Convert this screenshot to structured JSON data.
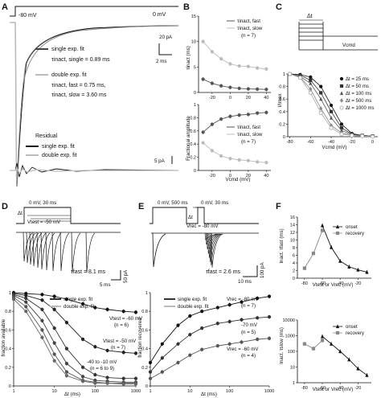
{
  "panels": {
    "a": {
      "letter": "A",
      "hold_voltage": "-80 mV",
      "step_voltage": "0 mV",
      "scale_pa": "20 pA",
      "scale_ms": "2 ms",
      "fit_single": "single exp. fit",
      "tau_single": "τinact, single = 0.89 ms",
      "fit_double": "double exp. fit",
      "tau_fast": "τinact, fast = 0.75 ms,",
      "tau_slow": "τinact, slow = 3.60 ms",
      "residual_title": "Residual",
      "residual_single": "single exp. fit",
      "residual_double": "double exp. fit",
      "residual_scale": "5 pA"
    },
    "b": {
      "letter": "B",
      "top_ylabel": "τinact (ms)",
      "top_legend": [
        "τinact, fast",
        "τinact, slow"
      ],
      "top_n": "(n = 7)",
      "bottom_ylabel": "Fractional amplitude",
      "bottom_legend": [
        "τinact, fast",
        "τinact, slow"
      ],
      "bottom_n": "(n = 7)",
      "xlabel": "Vcmd (mV)"
    },
    "c": {
      "letter": "C",
      "dt_label": "Δt",
      "vcmd_label": "Vcmd",
      "ylabel": "I/Imax",
      "xlabel": "Vcmd (mV)",
      "legend": [
        "Δt = 25 ms",
        "Δt = 50 ms",
        "Δt = 100 ms",
        "Δt = 500 ms",
        "Δt = 1000 ms"
      ]
    },
    "d": {
      "letter": "D",
      "protocol_label": "0 mV, 30 ms",
      "dt_label": "Δt",
      "vtest_label": "Vtest = -50 mV",
      "tau_label": "τfast = 8.1 ms",
      "scale_ms": "5 ms",
      "scale_pa": "50 pA",
      "legend": [
        "single exp. fit",
        "double exp. fit"
      ],
      "ylabel": "fraction available",
      "xlabel": "Δt (ms)",
      "curve_labels": [
        "Vtest = -60 mV",
        "(n = 6)",
        "Vtest = -50 mV",
        "(n = 7)",
        "-40 to -10 mV",
        "(n = 6 to 9)"
      ]
    },
    "e": {
      "letter": "E",
      "protocol_label_1": "0 mV, 500 ms",
      "protocol_label_2": "0 mV, 30 ms",
      "dt_label": "Δt",
      "vrec_label": "Vrec = -80 mV",
      "tau_label": "τfast = 2.6 ms",
      "scale_ms": "10 ms",
      "scale_pa": "100 pA",
      "legend": [
        "single exp. fit",
        "double exp. fit"
      ],
      "ylabel": "fraction recovered",
      "xlabel": "Δt (ms)",
      "curve_labels": [
        "Vrec = -80 mV",
        "(n = 7)",
        "-70 mV",
        "(n = 5)",
        "Vrec = -60 mV",
        "(n = 4)"
      ]
    },
    "f": {
      "letter": "F",
      "top_ylabel": "Inact. τfast (ms)",
      "bottom_ylabel": "Inact. τslow (ms)",
      "legend": [
        "onset",
        "recovery"
      ],
      "xlabel": "Vtest or Vrec (mV)"
    }
  },
  "chart_data": [
    {
      "type": "line",
      "panel": "B-top",
      "ylabel": "τinact (ms)",
      "xlabel": "Vcmd (mV)",
      "x": [
        -30,
        -20,
        -10,
        0,
        10,
        20,
        30,
        40
      ],
      "xticks": [
        -20,
        0,
        20,
        40
      ],
      "ylim": [
        0,
        15
      ],
      "yticks": [
        0,
        5,
        10,
        15
      ],
      "series": [
        {
          "name": "τinact, fast",
          "values": [
            2.6,
            1.8,
            1.3,
            1.0,
            0.8,
            0.7,
            0.65,
            0.6
          ]
        },
        {
          "name": "τinact, slow",
          "values": [
            10,
            8,
            6.6,
            5.6,
            5.2,
            5.1,
            4.8,
            4.6
          ]
        }
      ]
    },
    {
      "type": "line",
      "panel": "B-bottom",
      "ylabel": "Fractional amplitude",
      "xlabel": "Vcmd (mV)",
      "x": [
        -30,
        -20,
        -10,
        0,
        10,
        20,
        30,
        40
      ],
      "xticks": [
        -20,
        0,
        20,
        40
      ],
      "ylim": [
        0,
        1
      ],
      "yticks": [
        0,
        0.2,
        0.4,
        0.6,
        0.8,
        1.0
      ],
      "series": [
        {
          "name": "τinact, fast",
          "values": [
            0.58,
            0.7,
            0.78,
            0.82,
            0.84,
            0.85,
            0.87,
            0.88
          ]
        },
        {
          "name": "τinact, slow",
          "values": [
            0.42,
            0.3,
            0.22,
            0.18,
            0.16,
            0.15,
            0.13,
            0.12
          ]
        }
      ]
    },
    {
      "type": "line",
      "panel": "C",
      "ylabel": "I/Imax",
      "xlabel": "Vcmd (mV)",
      "x": [
        -80,
        -70,
        -60,
        -50,
        -40,
        -30,
        -20,
        -10,
        0
      ],
      "xticks": [
        -80,
        -60,
        -40,
        -20,
        0
      ],
      "ylim": [
        0,
        1
      ],
      "yticks": [
        0,
        0.2,
        0.4,
        0.6,
        0.8,
        1.0
      ],
      "series": [
        {
          "name": "Δt = 25 ms",
          "marker": "circle",
          "values": [
            1.0,
            0.99,
            0.95,
            0.8,
            0.5,
            0.2,
            0.05,
            0.02,
            0.01
          ]
        },
        {
          "name": "Δt = 50 ms",
          "marker": "square",
          "values": [
            1.0,
            0.98,
            0.9,
            0.7,
            0.4,
            0.14,
            0.04,
            0.02,
            0.01
          ]
        },
        {
          "name": "Δt = 100 ms",
          "marker": "triangle",
          "values": [
            1.0,
            0.96,
            0.85,
            0.6,
            0.3,
            0.1,
            0.03,
            0.02,
            0.01
          ]
        },
        {
          "name": "Δt = 500 ms",
          "marker": "diamond",
          "values": [
            1.0,
            0.95,
            0.76,
            0.45,
            0.18,
            0.06,
            0.02,
            0.01,
            0.0
          ]
        },
        {
          "name": "Δt = 1000 ms",
          "marker": "circle-open",
          "values": [
            1.0,
            0.94,
            0.7,
            0.38,
            0.14,
            0.04,
            0.02,
            0.01,
            0.0
          ]
        }
      ]
    },
    {
      "type": "line",
      "panel": "D",
      "scale": "log-x",
      "ylabel": "fraction available",
      "xlabel": "Δt (ms)",
      "x": [
        1,
        2,
        5,
        10,
        20,
        50,
        100,
        200,
        500,
        1000
      ],
      "xticks": [
        1,
        10,
        100,
        1000
      ],
      "ylim": [
        0,
        1
      ],
      "yticks": [
        0,
        0.2,
        0.4,
        0.6,
        0.8,
        1.0
      ],
      "series": [
        {
          "name": "Vtest = -60 mV",
          "values": [
            1.0,
            0.99,
            0.98,
            0.96,
            0.93,
            0.88,
            0.84,
            0.82,
            0.8,
            0.79
          ]
        },
        {
          "name": "Vtest = -50 mV",
          "values": [
            0.99,
            0.97,
            0.92,
            0.82,
            0.68,
            0.5,
            0.42,
            0.38,
            0.36,
            0.35
          ]
        },
        {
          "name": "-40 mV",
          "values": [
            0.98,
            0.94,
            0.82,
            0.62,
            0.4,
            0.2,
            0.12,
            0.09,
            0.08,
            0.08
          ]
        },
        {
          "name": "-30 mV",
          "values": [
            0.97,
            0.9,
            0.7,
            0.46,
            0.24,
            0.1,
            0.06,
            0.05,
            0.04,
            0.04
          ]
        },
        {
          "name": "-20 mV",
          "values": [
            0.95,
            0.85,
            0.6,
            0.34,
            0.15,
            0.06,
            0.04,
            0.03,
            0.03,
            0.03
          ]
        },
        {
          "name": "-10 mV",
          "values": [
            0.93,
            0.8,
            0.52,
            0.27,
            0.11,
            0.05,
            0.03,
            0.03,
            0.02,
            0.02
          ]
        }
      ]
    },
    {
      "type": "line",
      "panel": "E",
      "scale": "log-x",
      "ylabel": "fraction recovered",
      "xlabel": "Δt (ms)",
      "x": [
        1,
        2,
        5,
        10,
        20,
        50,
        100,
        200,
        500,
        1000
      ],
      "xticks": [
        1,
        10,
        100,
        1000
      ],
      "ylim": [
        0,
        1
      ],
      "yticks": [
        0,
        0.2,
        0.4,
        0.6,
        0.8,
        1.0
      ],
      "series": [
        {
          "name": "Vrec = -80 mV",
          "values": [
            0.25,
            0.45,
            0.65,
            0.75,
            0.8,
            0.84,
            0.87,
            0.9,
            0.94,
            0.96
          ]
        },
        {
          "name": "-70 mV",
          "values": [
            0.15,
            0.3,
            0.45,
            0.55,
            0.62,
            0.67,
            0.69,
            0.71,
            0.73,
            0.74
          ]
        },
        {
          "name": "Vrec = -60 mV",
          "values": [
            0.08,
            0.15,
            0.25,
            0.33,
            0.39,
            0.43,
            0.45,
            0.47,
            0.5,
            0.51
          ]
        }
      ]
    },
    {
      "type": "line",
      "panel": "F-top",
      "ylabel": "Inact. τfast (ms)",
      "xlabel": "Vtest or Vrec (mV)",
      "xticks": [
        -80,
        -60,
        -40,
        -20
      ],
      "ylim": [
        0,
        16
      ],
      "yticks": [
        0,
        2,
        4,
        6,
        8,
        10,
        12,
        14,
        16
      ],
      "series": [
        {
          "name": "onset",
          "x": [
            -60,
            -50,
            -40,
            -30,
            -20,
            -10
          ],
          "values": [
            13.8,
            8.1,
            4.5,
            3.0,
            2.2,
            1.6
          ]
        },
        {
          "name": "recovery",
          "x": [
            -80,
            -70,
            -60
          ],
          "values": [
            2.6,
            6.5,
            12.5
          ]
        }
      ]
    },
    {
      "type": "line",
      "panel": "F-bottom",
      "scale": "log-y",
      "ylabel": "Inact. τslow (ms)",
      "xlabel": "Vtest or Vrec (mV)",
      "xticks": [
        -80,
        -60,
        -40,
        -20
      ],
      "ylim": [
        1,
        10000
      ],
      "yticks": [
        1,
        10,
        100,
        1000,
        10000
      ],
      "series": [
        {
          "name": "onset",
          "x": [
            -60,
            -50,
            -40,
            -30,
            -20,
            -10
          ],
          "values": [
            900,
            300,
            100,
            30,
            8,
            3
          ]
        },
        {
          "name": "recovery",
          "x": [
            -80,
            -70,
            -60
          ],
          "values": [
            300,
            150,
            500
          ]
        }
      ]
    }
  ]
}
